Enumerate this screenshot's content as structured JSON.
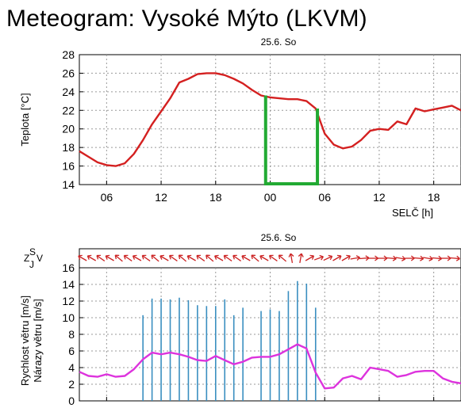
{
  "title": "Meteogram: Vysoké Mýto (LKVM)",
  "colors": {
    "temp": "#d42020",
    "highlight": "#22aa33",
    "wind": "#dd33dd",
    "gust": "#3a8fc0",
    "arrow": "#cc2222",
    "grid": "#999999"
  },
  "chart_data": [
    {
      "type": "line",
      "date_label": "25.6. So",
      "ylabel": "Teplota [°C]",
      "xlabel": "SELČ [h]",
      "ylim": [
        14,
        28
      ],
      "y_ticks": [
        14,
        16,
        18,
        20,
        22,
        24,
        26,
        28
      ],
      "x_ticks": [
        "06",
        "12",
        "18",
        "00",
        "06",
        "12",
        "18"
      ],
      "x_range_hours": [
        0,
        42
      ],
      "grid": true,
      "series": [
        {
          "values": [
            [
              0,
              17.6
            ],
            [
              1,
              17.0
            ],
            [
              2,
              16.4
            ],
            [
              3,
              16.1
            ],
            [
              4,
              16.0
            ],
            [
              5,
              16.3
            ],
            [
              6,
              17.3
            ],
            [
              7,
              18.8
            ],
            [
              8,
              20.5
            ],
            [
              9,
              21.9
            ],
            [
              10,
              23.3
            ],
            [
              11,
              25.0
            ],
            [
              12,
              25.4
            ],
            [
              13,
              25.9
            ],
            [
              14,
              26.0
            ],
            [
              15,
              26.0
            ],
            [
              16,
              25.8
            ],
            [
              17,
              25.4
            ],
            [
              18,
              24.9
            ],
            [
              19,
              24.2
            ],
            [
              20,
              23.6
            ],
            [
              21,
              23.4
            ],
            [
              22,
              23.3
            ],
            [
              23,
              23.2
            ],
            [
              24,
              23.2
            ],
            [
              25,
              23.0
            ],
            [
              26,
              22.2
            ],
            [
              27,
              19.5
            ],
            [
              28,
              18.3
            ],
            [
              29,
              17.9
            ],
            [
              30,
              18.1
            ],
            [
              31,
              18.8
            ],
            [
              32,
              19.8
            ],
            [
              33,
              20.0
            ],
            [
              34,
              19.9
            ],
            [
              35,
              20.8
            ],
            [
              36,
              20.5
            ],
            [
              37,
              22.2
            ],
            [
              38,
              21.9
            ],
            [
              39,
              22.1
            ],
            [
              40,
              22.3
            ],
            [
              41,
              22.5
            ],
            [
              42,
              22.0
            ]
          ]
        }
      ],
      "highlight_range_hours": [
        20.5,
        26.2
      ]
    },
    {
      "type": "line",
      "date_label": "25.6. So",
      "ylabel": "Rychlost větru [m/s]",
      "ylabel2": "Nárazy větru [m/s]",
      "direction_labels": [
        "Z",
        "J",
        "S",
        "V"
      ],
      "ylim": [
        0,
        16
      ],
      "y_ticks": [
        0,
        2,
        4,
        6,
        8,
        10,
        12,
        14,
        16
      ],
      "x_range_hours": [
        0,
        42
      ],
      "grid": true,
      "series": [
        {
          "values": [
            [
              0,
              3.5
            ],
            [
              1,
              3.0
            ],
            [
              2,
              2.9
            ],
            [
              3,
              3.2
            ],
            [
              4,
              2.9
            ],
            [
              5,
              3.0
            ],
            [
              6,
              3.8
            ],
            [
              7,
              5.0
            ],
            [
              8,
              5.8
            ],
            [
              9,
              5.6
            ],
            [
              10,
              5.8
            ],
            [
              11,
              5.6
            ],
            [
              12,
              5.3
            ],
            [
              13,
              4.9
            ],
            [
              14,
              4.8
            ],
            [
              15,
              5.4
            ],
            [
              16,
              4.9
            ],
            [
              17,
              4.4
            ],
            [
              18,
              4.7
            ],
            [
              19,
              5.2
            ],
            [
              20,
              5.3
            ],
            [
              21,
              5.3
            ],
            [
              22,
              5.6
            ],
            [
              23,
              6.2
            ],
            [
              24,
              6.8
            ],
            [
              25,
              6.3
            ],
            [
              26,
              3.4
            ],
            [
              27,
              1.5
            ],
            [
              28,
              1.6
            ],
            [
              29,
              2.7
            ],
            [
              30,
              3.0
            ],
            [
              31,
              2.6
            ],
            [
              32,
              4.0
            ],
            [
              33,
              3.8
            ],
            [
              34,
              3.6
            ],
            [
              35,
              2.9
            ],
            [
              36,
              3.1
            ],
            [
              37,
              3.5
            ],
            [
              38,
              3.6
            ],
            [
              39,
              3.6
            ],
            [
              40,
              2.7
            ],
            [
              41,
              2.3
            ],
            [
              42,
              2.1
            ]
          ]
        },
        {
          "type": "bar",
          "values": [
            [
              7,
              10.3
            ],
            [
              8,
              12.3
            ],
            [
              9,
              12.3
            ],
            [
              10,
              12.2
            ],
            [
              11,
              12.4
            ],
            [
              12,
              12.1
            ],
            [
              13,
              11.5
            ],
            [
              14,
              11.4
            ],
            [
              15,
              11.4
            ],
            [
              16,
              12.2
            ],
            [
              17,
              10.3
            ],
            [
              18,
              11.2
            ],
            [
              20,
              10.8
            ],
            [
              21,
              11.0
            ],
            [
              22,
              10.8
            ],
            [
              23,
              13.2
            ],
            [
              24,
              14.4
            ],
            [
              25,
              14.1
            ],
            [
              26,
              11.2
            ]
          ]
        }
      ],
      "wind_direction_deg": [
        300,
        300,
        305,
        300,
        310,
        305,
        300,
        305,
        310,
        300,
        305,
        310,
        300,
        305,
        310,
        300,
        305,
        305,
        300,
        310,
        300,
        305,
        310,
        350,
        10,
        60,
        70,
        65,
        60,
        60,
        80,
        85,
        90,
        90,
        95,
        100,
        90,
        95,
        100,
        95,
        90,
        95,
        90
      ]
    }
  ]
}
